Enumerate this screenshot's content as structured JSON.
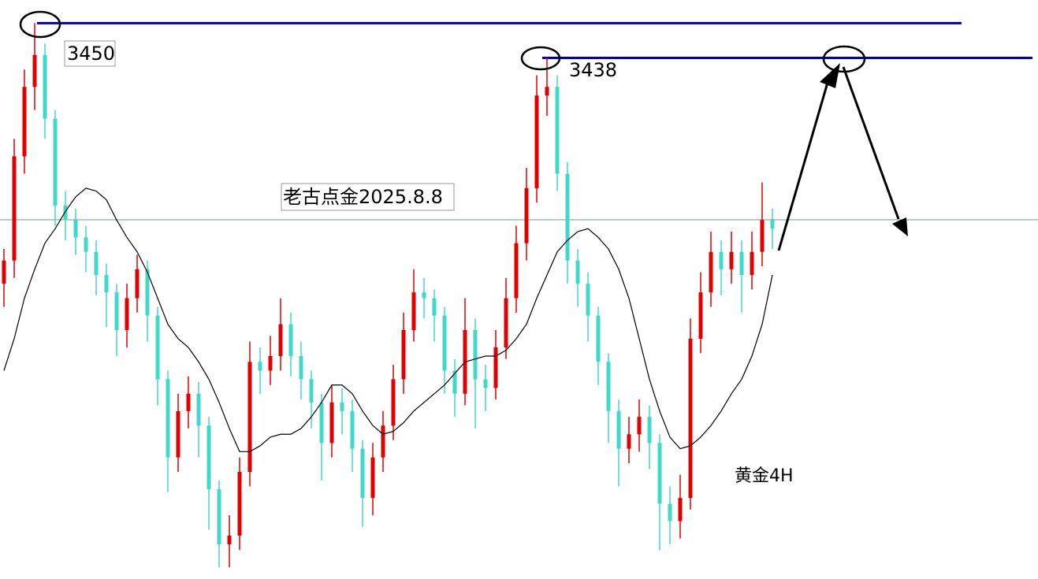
{
  "chart_data": {
    "type": "candlestick",
    "title": "黄金4H",
    "subtitle": "老古点金2025.8.8",
    "ylim": [
      3258,
      3458
    ],
    "levels": [
      3450,
      3438
    ],
    "up_color": "#e00000",
    "down_color": "#40d8c8",
    "ma_color": "#000000",
    "candles": [
      [
        3360,
        3372,
        3352,
        3368
      ],
      [
        3368,
        3410,
        3362,
        3404
      ],
      [
        3404,
        3434,
        3398,
        3428
      ],
      [
        3428,
        3450,
        3420,
        3439
      ],
      [
        3439,
        3443,
        3410,
        3417
      ],
      [
        3417,
        3420,
        3380,
        3387
      ],
      [
        3387,
        3392,
        3375,
        3382
      ],
      [
        3382,
        3386,
        3370,
        3376
      ],
      [
        3376,
        3380,
        3364,
        3371
      ],
      [
        3371,
        3375,
        3356,
        3363
      ],
      [
        3363,
        3367,
        3345,
        3357
      ],
      [
        3357,
        3360,
        3335,
        3344
      ],
      [
        3344,
        3360,
        3338,
        3355
      ],
      [
        3355,
        3370,
        3350,
        3365
      ],
      [
        3365,
        3368,
        3340,
        3349
      ],
      [
        3349,
        3352,
        3318,
        3327
      ],
      [
        3327,
        3330,
        3288,
        3300
      ],
      [
        3300,
        3322,
        3295,
        3316
      ],
      [
        3316,
        3328,
        3310,
        3322
      ],
      [
        3322,
        3326,
        3300,
        3311
      ],
      [
        3311,
        3314,
        3275,
        3289
      ],
      [
        3289,
        3292,
        3262,
        3270
      ],
      [
        3270,
        3280,
        3262,
        3273
      ],
      [
        3273,
        3300,
        3268,
        3295
      ],
      [
        3295,
        3340,
        3290,
        3333
      ],
      [
        3333,
        3338,
        3322,
        3330
      ],
      [
        3330,
        3342,
        3325,
        3335
      ],
      [
        3335,
        3355,
        3330,
        3346
      ],
      [
        3346,
        3350,
        3328,
        3335
      ],
      [
        3335,
        3340,
        3320,
        3327
      ],
      [
        3327,
        3330,
        3310,
        3319
      ],
      [
        3319,
        3322,
        3292,
        3305
      ],
      [
        3305,
        3325,
        3300,
        3319
      ],
      [
        3319,
        3324,
        3308,
        3316
      ],
      [
        3316,
        3320,
        3295,
        3303
      ],
      [
        3303,
        3306,
        3276,
        3286
      ],
      [
        3286,
        3305,
        3280,
        3300
      ],
      [
        3300,
        3316,
        3295,
        3311
      ],
      [
        3311,
        3332,
        3306,
        3327
      ],
      [
        3327,
        3350,
        3322,
        3344
      ],
      [
        3344,
        3365,
        3340,
        3357
      ],
      [
        3357,
        3362,
        3348,
        3355
      ],
      [
        3355,
        3358,
        3340,
        3349
      ],
      [
        3349,
        3352,
        3322,
        3330
      ],
      [
        3330,
        3334,
        3314,
        3322
      ],
      [
        3322,
        3355,
        3318,
        3344
      ],
      [
        3344,
        3348,
        3310,
        3327
      ],
      [
        3327,
        3332,
        3316,
        3324
      ],
      [
        3324,
        3344,
        3320,
        3338
      ],
      [
        3338,
        3362,
        3334,
        3355
      ],
      [
        3355,
        3380,
        3350,
        3374
      ],
      [
        3374,
        3400,
        3368,
        3393
      ],
      [
        3393,
        3432,
        3388,
        3425
      ],
      [
        3425,
        3438,
        3418,
        3428
      ],
      [
        3428,
        3432,
        3392,
        3398
      ],
      [
        3398,
        3402,
        3360,
        3368
      ],
      [
        3368,
        3372,
        3352,
        3360
      ],
      [
        3360,
        3364,
        3340,
        3349
      ],
      [
        3349,
        3352,
        3325,
        3333
      ],
      [
        3333,
        3336,
        3305,
        3316
      ],
      [
        3316,
        3320,
        3290,
        3303
      ],
      [
        3303,
        3314,
        3298,
        3308
      ],
      [
        3308,
        3320,
        3302,
        3314
      ],
      [
        3314,
        3318,
        3296,
        3305
      ],
      [
        3305,
        3308,
        3268,
        3284
      ],
      [
        3284,
        3290,
        3270,
        3278
      ],
      [
        3278,
        3294,
        3272,
        3286
      ],
      [
        3286,
        3348,
        3282,
        3341
      ],
      [
        3341,
        3364,
        3336,
        3357
      ],
      [
        3357,
        3378,
        3352,
        3371
      ],
      [
        3371,
        3375,
        3356,
        3365
      ],
      [
        3365,
        3378,
        3360,
        3371
      ],
      [
        3371,
        3375,
        3350,
        3363
      ],
      [
        3363,
        3378,
        3358,
        3371
      ],
      [
        3371,
        3395,
        3366,
        3382
      ],
      [
        3382,
        3386,
        3372,
        3379
      ]
    ],
    "ma": [
      3330,
      3341,
      3355,
      3365,
      3374,
      3379,
      3385,
      3390,
      3393,
      3392,
      3389,
      3382,
      3376,
      3371,
      3364,
      3355,
      3346,
      3341,
      3338,
      3333,
      3327,
      3319,
      3310,
      3302,
      3302,
      3304,
      3307,
      3308,
      3308,
      3310,
      3314,
      3319,
      3325,
      3325,
      3322,
      3316,
      3311,
      3308,
      3309,
      3312,
      3316,
      3319,
      3322,
      3325,
      3329,
      3333,
      3334,
      3335,
      3335,
      3337,
      3341,
      3346,
      3355,
      3363,
      3371,
      3375,
      3378,
      3379,
      3376,
      3372,
      3365,
      3355,
      3341,
      3327,
      3316,
      3307,
      3303,
      3304,
      3307,
      3311,
      3316,
      3322,
      3327,
      3335,
      3346,
      3363
    ]
  }
}
